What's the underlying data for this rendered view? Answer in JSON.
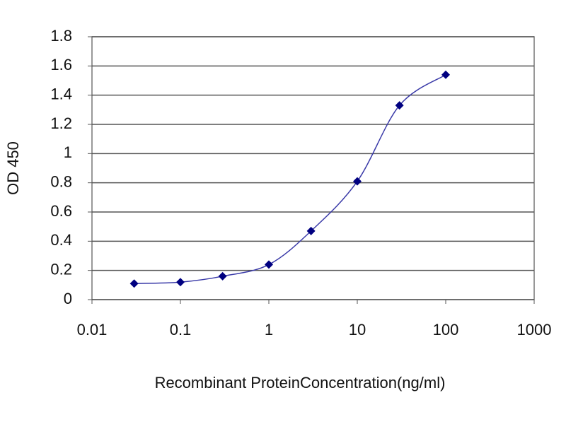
{
  "chart_data": {
    "type": "line",
    "xlabel": "Recombinant ProteinConcentration(ng/ml)",
    "ylabel": "OD 450",
    "xscale": "log",
    "x": [
      0.03,
      0.1,
      0.3,
      1,
      3,
      10,
      30,
      100
    ],
    "series": [
      {
        "color": "#000080",
        "values": [
          0.11,
          0.12,
          0.16,
          0.24,
          0.47,
          0.81,
          1.33,
          1.54
        ]
      }
    ],
    "xlim": [
      0.01,
      1000
    ],
    "xticks": [
      0.01,
      0.1,
      1,
      10,
      100,
      1000
    ],
    "ylim": [
      0,
      1.8
    ],
    "yticks": [
      0,
      0.2,
      0.4,
      0.6,
      0.8,
      1,
      1.2,
      1.4,
      1.6,
      1.8
    ],
    "grid": true
  }
}
